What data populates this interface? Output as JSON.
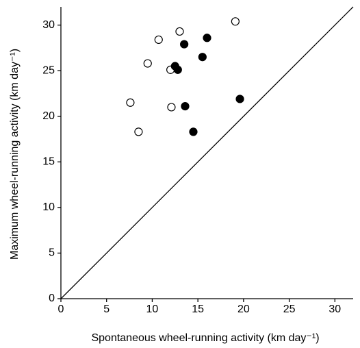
{
  "chart_data": {
    "type": "scatter",
    "x_label": "Spontaneous wheel-running activity (km day⁻¹)",
    "y_label": "Maximum wheel-running activity (km day⁻¹)",
    "xlim": [
      0,
      32
    ],
    "ylim": [
      0,
      32
    ],
    "xticks": [
      0,
      5,
      10,
      15,
      20,
      25,
      30
    ],
    "yticks": [
      0,
      5,
      10,
      15,
      20,
      25,
      30
    ],
    "identity_line": true,
    "series": [
      {
        "color": "#000000",
        "fill": "#ffffff",
        "x": [
          7.6,
          8.5,
          9.5,
          10.7,
          12.0,
          12.1,
          13.0,
          19.1
        ],
        "values": [
          21.5,
          18.3,
          25.8,
          28.4,
          25.1,
          21.0,
          29.3,
          30.4
        ]
      },
      {
        "color": "#000000",
        "fill": "#000000",
        "x": [
          12.5,
          12.8,
          13.5,
          13.6,
          14.5,
          15.5,
          16.0,
          19.6
        ],
        "values": [
          25.5,
          25.1,
          27.9,
          21.1,
          18.3,
          26.5,
          28.6,
          21.9
        ]
      }
    ]
  }
}
